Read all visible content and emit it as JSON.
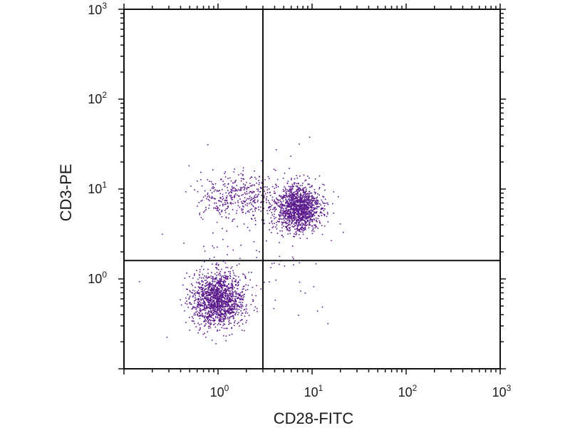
{
  "chart_data": {
    "type": "scatter",
    "title": "",
    "xlabel": "CD28-FITC",
    "ylabel": "CD3-PE",
    "xscale": "log",
    "yscale": "log",
    "xlim": [
      0.1,
      1000
    ],
    "ylim": [
      0.1,
      1000
    ],
    "x_tick_labels": [
      {
        "base": "10",
        "exp": "0",
        "value": 1
      },
      {
        "base": "10",
        "exp": "1",
        "value": 10
      },
      {
        "base": "10",
        "exp": "2",
        "value": 100
      },
      {
        "base": "10",
        "exp": "3",
        "value": 1000
      }
    ],
    "y_tick_labels": [
      {
        "base": "10",
        "exp": "0",
        "value": 1
      },
      {
        "base": "10",
        "exp": "1",
        "value": 10
      },
      {
        "base": "10",
        "exp": "2",
        "value": 100
      },
      {
        "base": "10",
        "exp": "3",
        "value": 1000
      }
    ],
    "quadrant_gate": {
      "x": 3.0,
      "y": 1.6
    },
    "point_color": "#5b1a8c",
    "populations": [
      {
        "name": "CD3-negative CD28-negative",
        "center": [
          1.0,
          0.6
        ],
        "spread_log10": [
          0.14,
          0.15
        ],
        "count": 1500
      },
      {
        "name": "CD3-positive CD28-positive",
        "center": [
          7.0,
          6.2
        ],
        "spread_log10": [
          0.12,
          0.13
        ],
        "count": 1400
      },
      {
        "name": "CD3-positive CD28-negative",
        "center": [
          1.6,
          8.5
        ],
        "spread_log10": [
          0.2,
          0.13
        ],
        "count": 380
      },
      {
        "name": "scattered events",
        "center": [
          3.0,
          2.5
        ],
        "spread_log10": [
          0.45,
          0.45
        ],
        "count": 120
      }
    ]
  }
}
